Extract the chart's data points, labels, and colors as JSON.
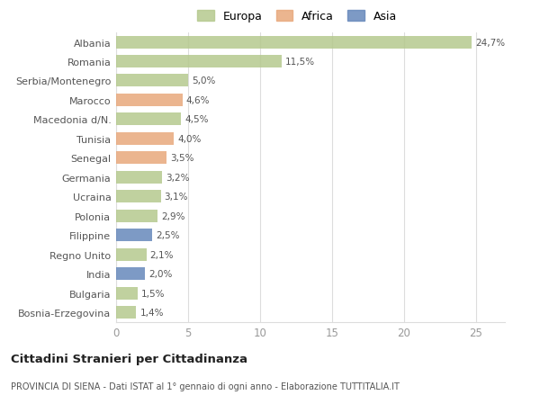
{
  "categories": [
    "Bosnia-Erzegovina",
    "Bulgaria",
    "India",
    "Regno Unito",
    "Filippine",
    "Polonia",
    "Ucraina",
    "Germania",
    "Senegal",
    "Tunisia",
    "Macedonia d/N.",
    "Marocco",
    "Serbia/Montenegro",
    "Romania",
    "Albania"
  ],
  "values": [
    1.4,
    1.5,
    2.0,
    2.1,
    2.5,
    2.9,
    3.1,
    3.2,
    3.5,
    4.0,
    4.5,
    4.6,
    5.0,
    11.5,
    24.7
  ],
  "labels": [
    "1,4%",
    "1,5%",
    "2,0%",
    "2,1%",
    "2,5%",
    "2,9%",
    "3,1%",
    "3,2%",
    "3,5%",
    "4,0%",
    "4,5%",
    "4,6%",
    "5,0%",
    "11,5%",
    "24,7%"
  ],
  "colors": [
    "#b5c98e",
    "#b5c98e",
    "#6688bb",
    "#b5c98e",
    "#6688bb",
    "#b5c98e",
    "#b5c98e",
    "#b5c98e",
    "#e8a87c",
    "#e8a87c",
    "#b5c98e",
    "#e8a87c",
    "#b5c98e",
    "#b5c98e",
    "#b5c98e"
  ],
  "legend": [
    {
      "label": "Europa",
      "color": "#b5c98e"
    },
    {
      "label": "Africa",
      "color": "#e8a87c"
    },
    {
      "label": "Asia",
      "color": "#6688bb"
    }
  ],
  "xlim": [
    0,
    27
  ],
  "xticks": [
    0,
    5,
    10,
    15,
    20,
    25
  ],
  "title": "Cittadini Stranieri per Cittadinanza",
  "subtitle": "PROVINCIA DI SIENA - Dati ISTAT al 1° gennaio di ogni anno - Elaborazione TUTTITALIA.IT",
  "bg_color": "#ffffff",
  "bar_height": 0.65,
  "grid_color": "#dddddd"
}
